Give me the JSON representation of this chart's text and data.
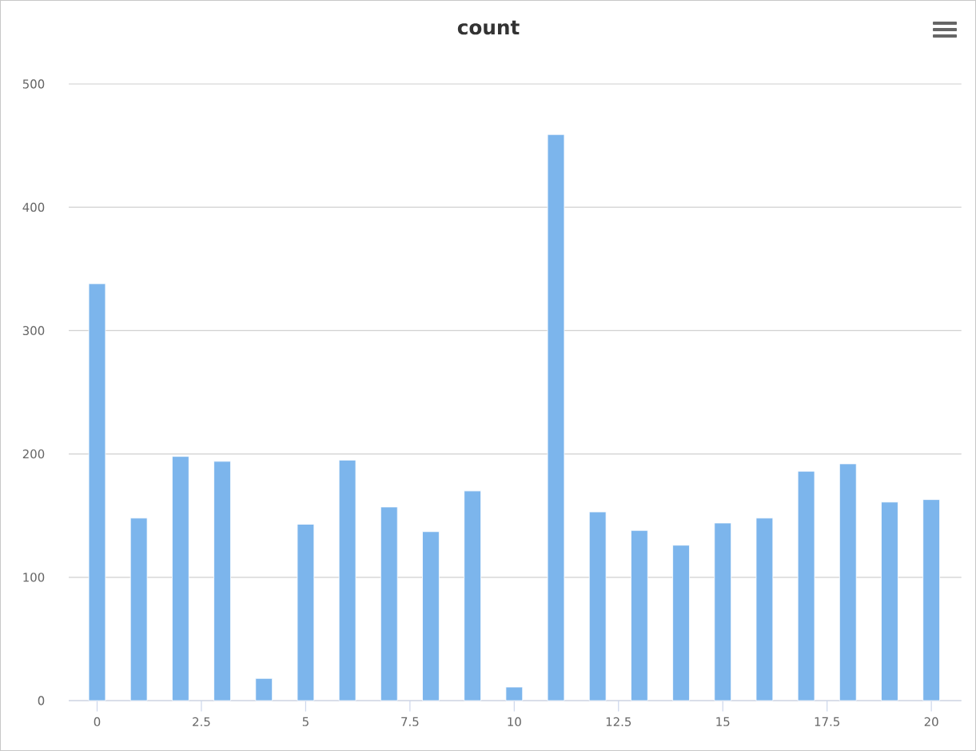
{
  "chart_data": {
    "type": "bar",
    "title": "count",
    "x": [
      0,
      1,
      2,
      3,
      4,
      5,
      6,
      7,
      8,
      9,
      10,
      11,
      12,
      13,
      14,
      15,
      16,
      17,
      18,
      19,
      20
    ],
    "values": [
      338,
      148,
      198,
      194,
      18,
      143,
      195,
      157,
      137,
      170,
      11,
      459,
      153,
      138,
      126,
      144,
      148,
      186,
      192,
      161,
      163
    ],
    "color": "#7cb5ec",
    "xlim": [
      -0.68,
      20.72
    ],
    "ylim": [
      0,
      500
    ],
    "xticks": [
      0,
      2.5,
      5,
      7.5,
      10,
      12.5,
      15,
      17.5,
      20
    ],
    "yticks": [
      0,
      100,
      200,
      300,
      400,
      500
    ],
    "grid": "y"
  }
}
